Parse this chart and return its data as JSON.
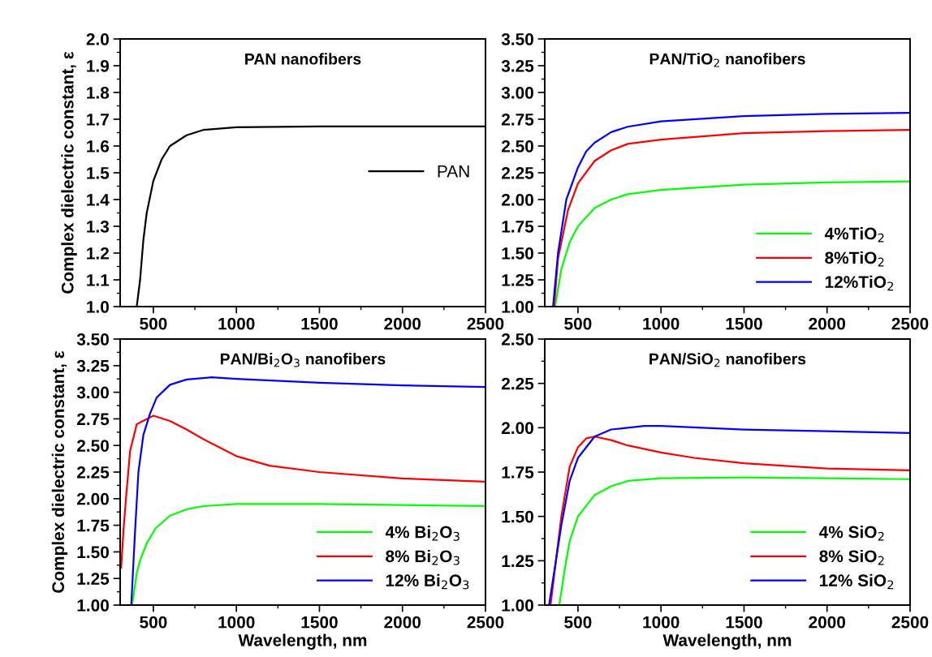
{
  "chart_data": [
    {
      "type": "line",
      "title": "PAN nanofibers",
      "ylabel": "Complex dielectric constant, ε",
      "xlim": [
        300,
        2500
      ],
      "xticks": [
        500,
        1000,
        1500,
        2000,
        2500
      ],
      "ylim": [
        1.0,
        2.0
      ],
      "yticks": [
        {
          "value": 1.0,
          "label": "1.0"
        },
        {
          "value": 1.1,
          "label": "1.1"
        },
        {
          "value": 1.2,
          "label": "1.2"
        },
        {
          "value": 1.3,
          "label": "1.3"
        },
        {
          "value": 1.4,
          "label": "1.4"
        },
        {
          "value": 1.5,
          "label": "1.5"
        },
        {
          "value": 1.6,
          "label": "1.6"
        },
        {
          "value": 1.7,
          "label": "1.7"
        },
        {
          "value": 1.8,
          "label": "1.8"
        },
        {
          "value": 1.9,
          "label": "1.9"
        },
        {
          "value": 2.0,
          "label": "2.0"
        }
      ],
      "grid": false,
      "legend": "right",
      "series": [
        {
          "name": "PAN",
          "color": "#000000",
          "x": [
            400,
            420,
            440,
            460,
            500,
            550,
            600,
            700,
            800,
            1000,
            1500,
            2000,
            2500
          ],
          "values": [
            1.0,
            1.1,
            1.25,
            1.35,
            1.47,
            1.55,
            1.6,
            1.64,
            1.66,
            1.67,
            1.673,
            1.673,
            1.673
          ]
        }
      ]
    },
    {
      "type": "line",
      "title": "PAN/TiO$_{2}$ nanofibers",
      "xlim": [
        300,
        2500
      ],
      "xticks": [
        500,
        1000,
        1500,
        2000,
        2500
      ],
      "ylim": [
        1.0,
        3.5
      ],
      "yticks": [
        {
          "value": 1.0,
          "label": "1.00"
        },
        {
          "value": 1.25,
          "label": "1.25"
        },
        {
          "value": 1.5,
          "label": "1.50"
        },
        {
          "value": 1.75,
          "label": "1.75"
        },
        {
          "value": 2.0,
          "label": "2.00"
        },
        {
          "value": 2.25,
          "label": "2.25"
        },
        {
          "value": 2.5,
          "label": "2.50"
        },
        {
          "value": 2.75,
          "label": "2.75"
        },
        {
          "value": 3.0,
          "label": "3.00"
        },
        {
          "value": 3.25,
          "label": "3.25"
        },
        {
          "value": 3.5,
          "label": "3.50"
        }
      ],
      "grid": false,
      "legend": "lower right",
      "series": [
        {
          "name": "4%TiO$_{2}$",
          "color": "#00ff00",
          "x": [
            362,
            400,
            450,
            500,
            600,
            700,
            800,
            1000,
            1500,
            2000,
            2500
          ],
          "values": [
            1.0,
            1.35,
            1.6,
            1.75,
            1.92,
            2.0,
            2.05,
            2.09,
            2.14,
            2.16,
            2.17
          ]
        },
        {
          "name": "8%TiO$_{2}$",
          "color": "#ff0000",
          "x": [
            356,
            380,
            440,
            500,
            600,
            700,
            800,
            1000,
            1500,
            2000,
            2500
          ],
          "values": [
            1.0,
            1.45,
            1.9,
            2.15,
            2.36,
            2.46,
            2.52,
            2.56,
            2.62,
            2.64,
            2.65
          ]
        },
        {
          "name": "12%TiO$_{2}$",
          "color": "#0000ff",
          "x": [
            350,
            380,
            430,
            500,
            550,
            600,
            700,
            800,
            1000,
            1500,
            2000,
            2500
          ],
          "values": [
            1.0,
            1.5,
            2.0,
            2.3,
            2.45,
            2.53,
            2.63,
            2.68,
            2.73,
            2.78,
            2.8,
            2.81
          ]
        }
      ]
    },
    {
      "type": "line",
      "title": "PAN/Bi$_{2}$O$_{3}$ nanofibers",
      "xlabel": "Wavelength, nm",
      "ylabel": "Complex dielectric constant, ε",
      "xlim": [
        300,
        2500
      ],
      "xticks": [
        500,
        1000,
        1500,
        2000,
        2500
      ],
      "ylim": [
        1.0,
        3.5
      ],
      "yticks": [
        {
          "value": 1.0,
          "label": "1.00"
        },
        {
          "value": 1.25,
          "label": "1.25"
        },
        {
          "value": 1.5,
          "label": "1.50"
        },
        {
          "value": 1.75,
          "label": "1.75"
        },
        {
          "value": 2.0,
          "label": "2.00"
        },
        {
          "value": 2.25,
          "label": "2.25"
        },
        {
          "value": 2.5,
          "label": "2.50"
        },
        {
          "value": 2.75,
          "label": "2.75"
        },
        {
          "value": 3.0,
          "label": "3.00"
        },
        {
          "value": 3.25,
          "label": "3.25"
        },
        {
          "value": 3.5,
          "label": "3.50"
        }
      ],
      "grid": false,
      "legend": "lower right",
      "series": [
        {
          "name": "4% Bi$_{2}$O$_{3}$",
          "color": "#00ff00",
          "x": [
            372,
            400,
            420,
            460,
            513,
            600,
            700,
            800,
            1000,
            1500,
            2000,
            2500
          ],
          "values": [
            1.0,
            1.3,
            1.42,
            1.58,
            1.72,
            1.84,
            1.9,
            1.93,
            1.95,
            1.95,
            1.94,
            1.93
          ]
        },
        {
          "name": "8% Bi$_{2}$O$_{3}$",
          "color": "#ff0000",
          "x": [
            306,
            320,
            335,
            360,
            400,
            500,
            600,
            700,
            800,
            1000,
            1200,
            1500,
            2000,
            2500
          ],
          "values": [
            1.35,
            1.7,
            2.0,
            2.45,
            2.7,
            2.78,
            2.73,
            2.65,
            2.56,
            2.4,
            2.31,
            2.25,
            2.19,
            2.16
          ]
        },
        {
          "name": "12% Bi$_{2}$O$_{3}$",
          "color": "#0000ff",
          "x": [
            367,
            390,
            410,
            440,
            480,
            520,
            600,
            700,
            850,
            1000,
            1500,
            2000,
            2500
          ],
          "values": [
            1.0,
            1.7,
            2.25,
            2.6,
            2.8,
            2.95,
            3.07,
            3.12,
            3.14,
            3.125,
            3.09,
            3.065,
            3.05
          ]
        }
      ]
    },
    {
      "type": "line",
      "title": "PAN/SiO$_{2}$ nanofibers",
      "xlabel": "Wavelength, nm",
      "xlim": [
        300,
        2500
      ],
      "xticks": [
        500,
        1000,
        1500,
        2000,
        2500
      ],
      "ylim": [
        1.0,
        2.5
      ],
      "yticks": [
        {
          "value": 1.0,
          "label": "1.00"
        },
        {
          "value": 1.25,
          "label": "1.25"
        },
        {
          "value": 1.5,
          "label": "1.50"
        },
        {
          "value": 1.75,
          "label": "1.75"
        },
        {
          "value": 2.0,
          "label": "2.00"
        },
        {
          "value": 2.25,
          "label": "2.25"
        },
        {
          "value": 2.5,
          "label": "2.50"
        }
      ],
      "grid": false,
      "legend": "lower right",
      "series": [
        {
          "name": "4% SiO$_{2}$",
          "color": "#00ff00",
          "x": [
            388,
            420,
            450,
            500,
            600,
            700,
            800,
            1000,
            1500,
            2000,
            2500
          ],
          "values": [
            1.0,
            1.2,
            1.36,
            1.5,
            1.62,
            1.67,
            1.7,
            1.715,
            1.72,
            1.715,
            1.71
          ]
        },
        {
          "name": "8% SiO$_{2}$",
          "color": "#ff0000",
          "x": [
            335,
            400,
            450,
            500,
            550,
            600,
            700,
            800,
            1000,
            1200,
            1500,
            2000,
            2500
          ],
          "values": [
            1.0,
            1.5,
            1.78,
            1.89,
            1.94,
            1.95,
            1.93,
            1.9,
            1.86,
            1.83,
            1.8,
            1.77,
            1.76
          ]
        },
        {
          "name": "12% SiO$_{2}$",
          "color": "#0000ff",
          "x": [
            326,
            400,
            450,
            500,
            600,
            700,
            900,
            1000,
            1500,
            2000,
            2500
          ],
          "values": [
            1.0,
            1.45,
            1.7,
            1.83,
            1.95,
            1.99,
            2.01,
            2.01,
            1.99,
            1.98,
            1.97
          ]
        }
      ]
    }
  ]
}
